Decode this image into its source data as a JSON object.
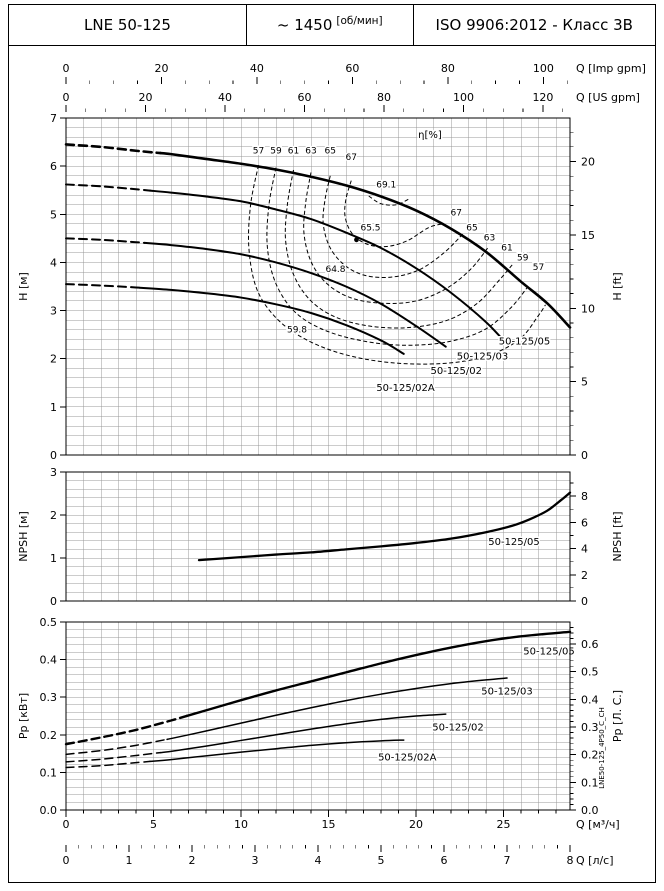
{
  "header": {
    "model": "LNE 50-125",
    "speed": "~ 1450",
    "speed_unit": "[об/мин]",
    "standard": "ISO 9906:2012 - Класс 3В"
  },
  "watermark": "LNE50-125_4P50_C_CH",
  "q_axes": {
    "q_max_m3h": 28.8,
    "top": [
      {
        "title": "Q [Imp gpm]",
        "ticks": [
          0,
          20,
          40,
          60,
          80,
          100
        ],
        "minor_step": 5,
        "to_m3h": 0.27276
      },
      {
        "title": "Q [US gpm]",
        "ticks": [
          0,
          20,
          40,
          60,
          80,
          100,
          120
        ],
        "minor_step": 5,
        "to_m3h": 0.22712
      }
    ],
    "bottom": [
      {
        "title": "Q [м³/ч]",
        "ticks": [
          0,
          5,
          10,
          15,
          20,
          25
        ],
        "minor_step": 1,
        "to_m3h": 1
      },
      {
        "title": "Q [л/с]",
        "ticks": [
          0,
          1,
          2,
          3,
          4,
          5,
          6,
          7,
          8
        ],
        "minor_step": 0.2,
        "to_m3h": 3.6
      }
    ]
  },
  "chart_data": [
    {
      "id": "head",
      "type": "line",
      "y_left": {
        "title": "H [м]",
        "min": 0,
        "max": 7,
        "label_step": 1,
        "grid_step": 0.2,
        "decimals": 0
      },
      "y_right": {
        "title": "H [ft]",
        "ticks": [
          0,
          5,
          10,
          15,
          20
        ],
        "minor_step": 1,
        "to_m": 0.3048,
        "decimals": 0
      },
      "series": [
        {
          "name": "50-125/05",
          "width": 2.6,
          "dash_until": 5.4,
          "q": [
            0,
            2,
            4,
            6,
            8,
            10,
            12,
            14,
            16,
            18,
            20,
            22,
            24,
            26,
            27.5,
            28.8
          ],
          "v": [
            6.45,
            6.4,
            6.32,
            6.25,
            6.15,
            6.05,
            5.93,
            5.78,
            5.6,
            5.37,
            5.08,
            4.7,
            4.22,
            3.6,
            3.15,
            2.65
          ]
        },
        {
          "name": "50-125/03",
          "width": 2.0,
          "dash_until": 4.8,
          "q": [
            0,
            2,
            4,
            6,
            8,
            10,
            12,
            14,
            16,
            18,
            20,
            22,
            24,
            25.2
          ],
          "v": [
            5.62,
            5.58,
            5.52,
            5.45,
            5.37,
            5.27,
            5.1,
            4.9,
            4.62,
            4.3,
            3.88,
            3.37,
            2.76,
            2.3
          ]
        },
        {
          "name": "50-125/02",
          "width": 2.0,
          "dash_until": 4.5,
          "q": [
            0,
            2,
            4,
            6,
            8,
            10,
            12,
            14,
            16,
            18,
            20,
            21.7
          ],
          "v": [
            4.5,
            4.47,
            4.42,
            4.36,
            4.28,
            4.17,
            4.0,
            3.78,
            3.5,
            3.14,
            2.68,
            2.25
          ]
        },
        {
          "name": "50-125/02A",
          "width": 2.0,
          "dash_until": 4.2,
          "q": [
            0,
            2,
            4,
            6,
            8,
            10,
            12,
            14,
            16,
            18,
            19.3
          ],
          "v": [
            3.55,
            3.52,
            3.48,
            3.43,
            3.36,
            3.27,
            3.13,
            2.95,
            2.7,
            2.38,
            2.1
          ]
        }
      ],
      "series_labels": [
        {
          "text": "50-125/05",
          "q": 26.2,
          "v": 2.37
        },
        {
          "text": "50-125/03",
          "q": 23.8,
          "v": 2.06
        },
        {
          "text": "50-125/02",
          "q": 22.3,
          "v": 1.76
        },
        {
          "text": "50-125/02A",
          "q": 19.4,
          "v": 1.4
        }
      ],
      "efficiency": {
        "unit_label": "η[%]",
        "unit_q": 20.8,
        "unit_v": 6.65,
        "contours": [
          {
            "value": 57,
            "pts": [
              [
                11.0,
                6.02
              ],
              [
                10.55,
                5.2
              ],
              [
                10.45,
                4.3
              ],
              [
                10.9,
                3.45
              ],
              [
                12.0,
                2.85
              ],
              [
                13.6,
                2.42
              ],
              [
                15.8,
                2.1
              ],
              [
                18.5,
                1.92
              ],
              [
                21.5,
                1.9
              ],
              [
                24.0,
                2.05
              ],
              [
                25.9,
                2.4
              ],
              [
                27.0,
                2.9
              ],
              [
                27.4,
                3.12
              ]
            ]
          },
          {
            "value": 59,
            "pts": [
              [
                12.0,
                5.97
              ],
              [
                11.6,
                5.2
              ],
              [
                11.5,
                4.35
              ],
              [
                11.95,
                3.6
              ],
              [
                13.0,
                3.0
              ],
              [
                14.6,
                2.62
              ],
              [
                16.8,
                2.38
              ],
              [
                19.3,
                2.28
              ],
              [
                21.8,
                2.35
              ],
              [
                23.9,
                2.6
              ],
              [
                25.4,
                3.05
              ],
              [
                26.4,
                3.5
              ]
            ]
          },
          {
            "value": 61,
            "pts": [
              [
                13.0,
                5.92
              ],
              [
                12.65,
                5.2
              ],
              [
                12.55,
                4.45
              ],
              [
                13.0,
                3.75
              ],
              [
                14.0,
                3.2
              ],
              [
                15.5,
                2.85
              ],
              [
                17.5,
                2.67
              ],
              [
                19.7,
                2.65
              ],
              [
                21.8,
                2.8
              ],
              [
                23.5,
                3.15
              ],
              [
                24.8,
                3.65
              ],
              [
                25.5,
                3.95
              ]
            ]
          },
          {
            "value": 63,
            "pts": [
              [
                14.0,
                5.87
              ],
              [
                13.7,
                5.25
              ],
              [
                13.6,
                4.6
              ],
              [
                14.05,
                3.98
              ],
              [
                15.0,
                3.53
              ],
              [
                16.4,
                3.25
              ],
              [
                18.2,
                3.15
              ],
              [
                20.0,
                3.2
              ],
              [
                21.7,
                3.45
              ],
              [
                23.1,
                3.85
              ],
              [
                24.1,
                4.3
              ]
            ]
          },
          {
            "value": 65,
            "pts": [
              [
                15.1,
                5.8
              ],
              [
                14.8,
                5.3
              ],
              [
                14.7,
                4.8
              ],
              [
                15.1,
                4.3
              ],
              [
                16.0,
                3.92
              ],
              [
                17.2,
                3.72
              ],
              [
                18.7,
                3.7
              ],
              [
                20.2,
                3.85
              ],
              [
                21.6,
                4.2
              ],
              [
                22.7,
                4.6
              ]
            ]
          },
          {
            "value": 67,
            "pts": [
              [
                16.3,
                5.7
              ],
              [
                16.0,
                5.32
              ],
              [
                15.95,
                4.95
              ],
              [
                16.35,
                4.6
              ],
              [
                17.2,
                4.38
              ],
              [
                18.3,
                4.33
              ],
              [
                19.5,
                4.45
              ],
              [
                20.7,
                4.72
              ],
              [
                21.5,
                4.8
              ]
            ]
          },
          {
            "value": 69.1,
            "pts": [
              [
                17.3,
                5.38
              ],
              [
                18.0,
                5.22
              ],
              [
                18.9,
                5.2
              ],
              [
                19.6,
                5.32
              ]
            ]
          }
        ],
        "labels": [
          {
            "text": "57",
            "q": 11.0,
            "v": 6.32
          },
          {
            "text": "59",
            "q": 12.0,
            "v": 6.32
          },
          {
            "text": "61",
            "q": 13.0,
            "v": 6.32
          },
          {
            "text": "63",
            "q": 14.0,
            "v": 6.32
          },
          {
            "text": "65",
            "q": 15.1,
            "v": 6.32
          },
          {
            "text": "67",
            "q": 16.3,
            "v": 6.19
          },
          {
            "text": "69.1",
            "q": 18.3,
            "v": 5.62
          },
          {
            "text": "67",
            "q": 22.3,
            "v": 5.04
          },
          {
            "text": "65",
            "q": 23.2,
            "v": 4.73
          },
          {
            "text": "63",
            "q": 24.2,
            "v": 4.52
          },
          {
            "text": "61",
            "q": 25.2,
            "v": 4.31
          },
          {
            "text": "59",
            "q": 26.1,
            "v": 4.1
          },
          {
            "text": "57",
            "q": 27.0,
            "v": 3.9
          },
          {
            "text": "65.5",
            "q": 17.4,
            "v": 4.73
          },
          {
            "text": "64.8",
            "q": 15.4,
            "v": 3.86
          },
          {
            "text": "59.8",
            "q": 13.2,
            "v": 2.61
          }
        ]
      },
      "marker_dot": {
        "q": 16.6,
        "v": 4.47
      }
    },
    {
      "id": "npsh",
      "type": "line",
      "y_left": {
        "title": "NPSH [м]",
        "min": 0,
        "max": 3,
        "label_step": 1,
        "grid_step": 0.2,
        "decimals": 0
      },
      "y_right": {
        "title": "NPSH [ft]",
        "ticks": [
          0,
          2,
          4,
          6,
          8
        ],
        "minor_step": 1,
        "to_m": 0.3048,
        "decimals": 0
      },
      "series": [
        {
          "name": "50-125/05",
          "width": 2.3,
          "dash_until": 0,
          "q": [
            7.6,
            10,
            12,
            14,
            16,
            18,
            20,
            22,
            24,
            25.5,
            26.5,
            27.5,
            28.3,
            28.8
          ],
          "v": [
            0.95,
            1.02,
            1.08,
            1.13,
            1.2,
            1.27,
            1.35,
            1.45,
            1.6,
            1.75,
            1.9,
            2.1,
            2.35,
            2.52
          ]
        }
      ],
      "series_labels": [
        {
          "text": "50-125/05",
          "q": 25.6,
          "v": 1.38
        }
      ]
    },
    {
      "id": "power",
      "type": "line",
      "y_left": {
        "title": "Pp [кВт]",
        "min": 0,
        "max": 0.5,
        "label_step": 0.1,
        "grid_step": 0.02,
        "decimals": 1
      },
      "y_right": {
        "title": "Pp [Л. С.]",
        "ticks": [
          0,
          0.1,
          0.2,
          0.3,
          0.4,
          0.5,
          0.6
        ],
        "minor_step": 0.02,
        "to_kw": 0.7355,
        "decimals": 1
      },
      "series": [
        {
          "name": "50-125/05",
          "width": 2.4,
          "dash_until": 6.9,
          "q": [
            0,
            2,
            4,
            6,
            8,
            10,
            12,
            14,
            16,
            18,
            20,
            22,
            24,
            26,
            28.8
          ],
          "v": [
            0.175,
            0.193,
            0.213,
            0.238,
            0.265,
            0.292,
            0.318,
            0.342,
            0.366,
            0.39,
            0.412,
            0.432,
            0.449,
            0.462,
            0.474
          ]
        },
        {
          "name": "50-125/03",
          "width": 1.5,
          "dash_until": 5.8,
          "q": [
            0,
            2,
            4,
            6,
            8,
            10,
            12,
            14,
            16,
            18,
            20,
            22,
            24,
            25.2
          ],
          "v": [
            0.148,
            0.158,
            0.172,
            0.19,
            0.21,
            0.231,
            0.252,
            0.272,
            0.291,
            0.308,
            0.323,
            0.336,
            0.346,
            0.351
          ]
        },
        {
          "name": "50-125/02",
          "width": 1.5,
          "dash_until": 5.4,
          "q": [
            0,
            2,
            4,
            6,
            8,
            10,
            12,
            14,
            16,
            18,
            20,
            21.7
          ],
          "v": [
            0.128,
            0.135,
            0.145,
            0.156,
            0.17,
            0.185,
            0.2,
            0.215,
            0.229,
            0.241,
            0.25,
            0.255
          ]
        },
        {
          "name": "50-125/02A",
          "width": 1.5,
          "dash_until": 4.8,
          "q": [
            0,
            2,
            4,
            6,
            8,
            10,
            12,
            14,
            16,
            18,
            19.3
          ],
          "v": [
            0.113,
            0.118,
            0.126,
            0.134,
            0.144,
            0.154,
            0.163,
            0.172,
            0.179,
            0.184,
            0.186
          ]
        }
      ],
      "series_labels": [
        {
          "text": "50-125/05",
          "q": 27.6,
          "v": 0.423
        },
        {
          "text": "50-125/03",
          "q": 25.2,
          "v": 0.317
        },
        {
          "text": "50-125/02",
          "q": 22.4,
          "v": 0.221
        },
        {
          "text": "50-125/02A",
          "q": 19.5,
          "v": 0.141
        }
      ]
    }
  ]
}
